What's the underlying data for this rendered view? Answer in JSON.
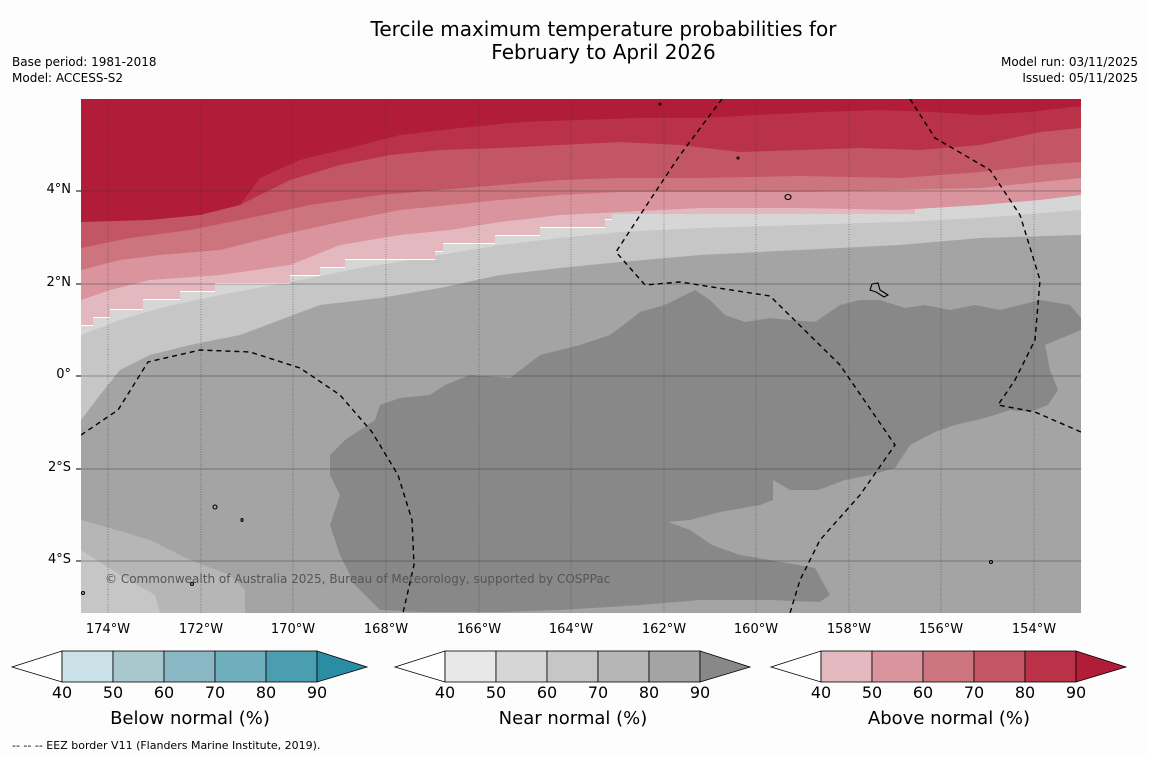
{
  "title": {
    "line1": "Tercile maximum temperature probabilities for",
    "line2": "February to April 2026"
  },
  "meta_left": {
    "base_period": "Base period: 1981-2018",
    "model": "Model: ACCESS-S2"
  },
  "meta_right": {
    "model_run": "Model run: 03/11/2025",
    "issued": "Issued: 05/11/2025"
  },
  "map": {
    "lat_labels": [
      "4°N",
      "2°N",
      "0°",
      "2°S",
      "4°S"
    ],
    "lon_labels": [
      "174°W",
      "172°W",
      "170°W",
      "168°W",
      "166°W",
      "164°W",
      "162°W",
      "160°W",
      "158°W",
      "156°W",
      "154°W"
    ],
    "copyright": "© Commonwealth of Australia 2025, Bureau of Meteorology, supported by COSPPac"
  },
  "legends": {
    "below": {
      "label": "Below normal (%)",
      "ticks": [
        "40",
        "50",
        "60",
        "70",
        "80",
        "90"
      ],
      "colors": [
        "#c9e1e7",
        "#a8c8ce",
        "#8ab7c4",
        "#6eaebd",
        "#4b9db0",
        "#2b8da4"
      ]
    },
    "near": {
      "label": "Near normal (%)",
      "ticks": [
        "40",
        "50",
        "60",
        "70",
        "80",
        "90"
      ],
      "colors": [
        "#e8e8e8",
        "#d6d6d6",
        "#c6c6c6",
        "#b6b6b6",
        "#a4a4a4",
        "#888888"
      ]
    },
    "above": {
      "label": "Above normal (%)",
      "ticks": [
        "40",
        "50",
        "60",
        "70",
        "80",
        "90"
      ],
      "colors": [
        "#e3b8be",
        "#d9949d",
        "#cd757f",
        "#c35665",
        "#b93248",
        "#b11d38"
      ]
    }
  },
  "footer": {
    "eez_note": "--  --  -- EEZ border V11 (Flanders Marine Institute, 2019)."
  }
}
